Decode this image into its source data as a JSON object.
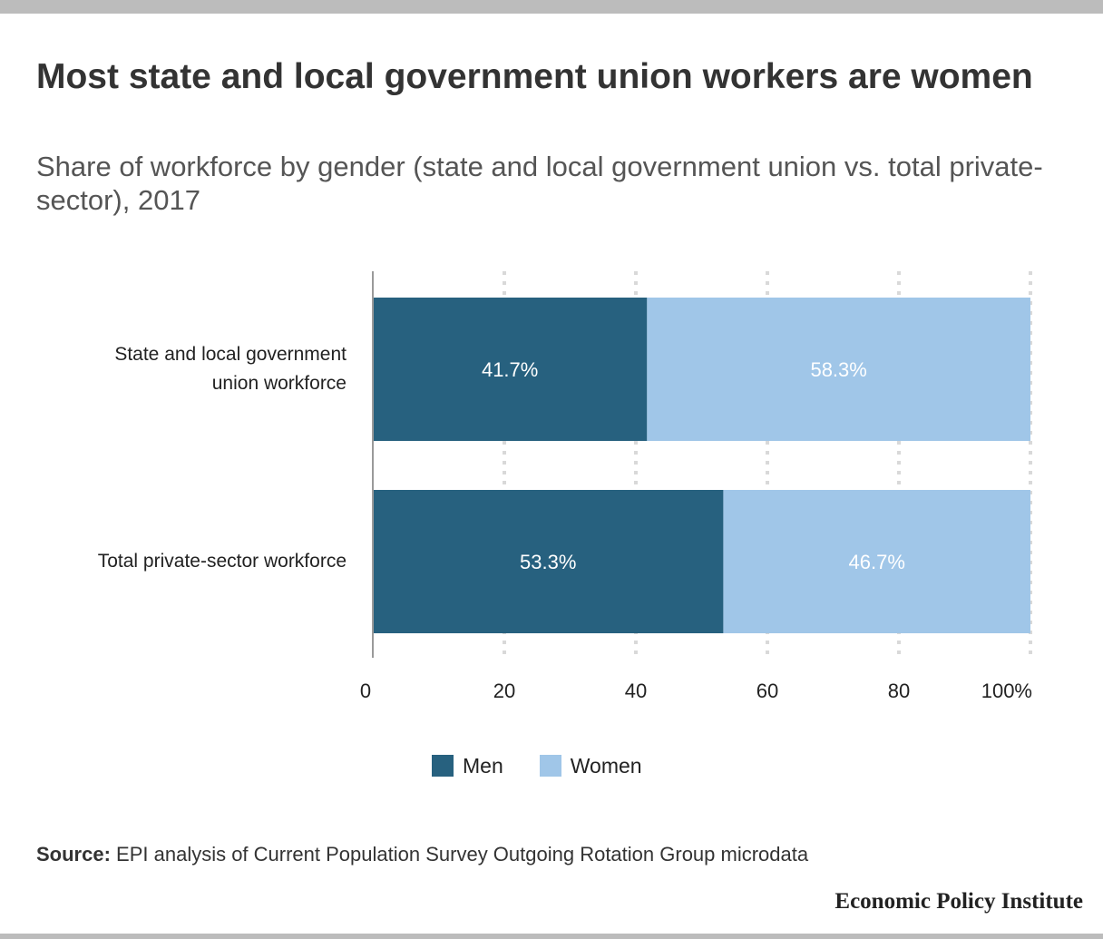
{
  "title": "Most state and local government union workers are women",
  "subtitle": "Share of workforce by gender (state and local government union vs. total private-sector), 2017",
  "colors": {
    "men": "#27617f",
    "women": "#a0c6e8",
    "grid": "#d9d9d9",
    "axis": "#9a9a9a"
  },
  "chart_data": {
    "type": "bar",
    "orientation": "horizontal",
    "stacked": true,
    "categories": [
      [
        "State and local government",
        "union workforce"
      ],
      [
        "Total private-sector workforce"
      ]
    ],
    "series": [
      {
        "name": "Men",
        "values": [
          41.7,
          53.3
        ],
        "labels": [
          "41.7%",
          "53.3%"
        ]
      },
      {
        "name": "Women",
        "values": [
          58.3,
          46.7
        ],
        "labels": [
          "58.3%",
          "46.7%"
        ]
      }
    ],
    "xlim": [
      0,
      100
    ],
    "x_ticks": [
      {
        "value": 0,
        "label": "0"
      },
      {
        "value": 20,
        "label": "20"
      },
      {
        "value": 40,
        "label": "40"
      },
      {
        "value": 60,
        "label": "60"
      },
      {
        "value": 80,
        "label": "80"
      },
      {
        "value": 100,
        "label": "100%"
      }
    ],
    "grid": true,
    "legend_position": "bottom"
  },
  "legend": {
    "men_label": "Men",
    "women_label": "Women"
  },
  "source": {
    "label": "Source:",
    "text": " EPI analysis of Current Population Survey Outgoing Rotation Group microdata"
  },
  "brand": "Economic Policy Institute"
}
